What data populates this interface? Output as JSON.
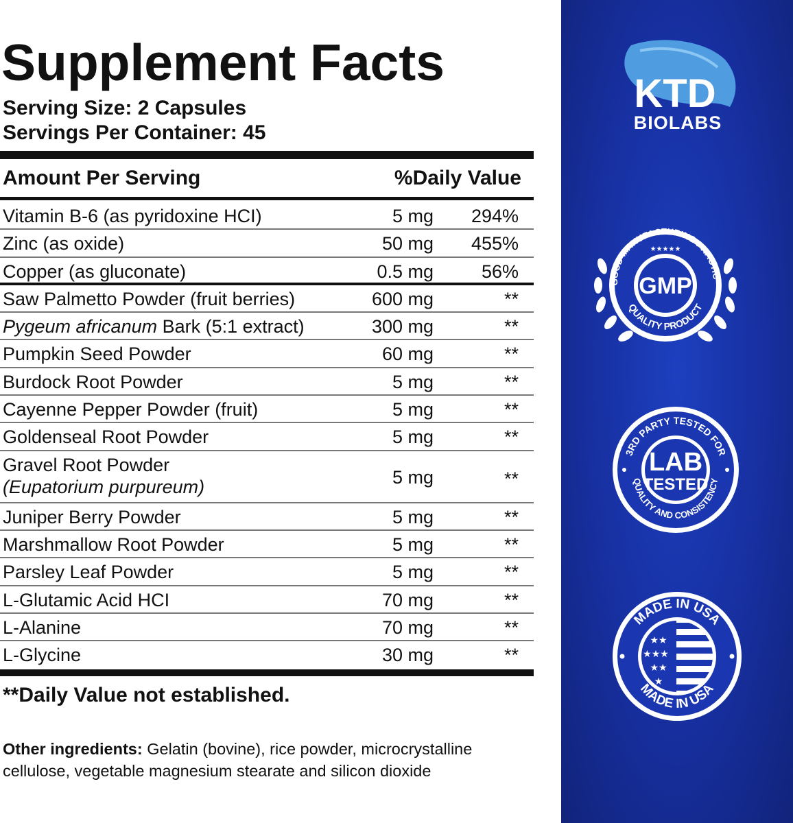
{
  "panel": {
    "title": "Supplement Facts",
    "serving_size": "Serving Size: 2 Capsules",
    "servings_per_container": "Servings Per Container: 45",
    "header_left": "Amount Per Serving",
    "header_right": "%Daily Value",
    "rows": [
      {
        "name": "Vitamin B-6 (as pyridoxine HCI)",
        "amount": "5 mg",
        "dv": "294%"
      },
      {
        "name": "Zinc (as oxide)",
        "amount": "50 mg",
        "dv": "455%"
      },
      {
        "name": "Copper  (as gluconate)",
        "amount": "0.5 mg",
        "dv": "56%"
      },
      {
        "name": "Saw Palmetto Powder (fruit berries)",
        "amount": "600 mg",
        "dv": "**"
      },
      {
        "name_italic": "Pygeum africanum",
        "name_rest": " Bark (5:1 extract)",
        "amount": "300 mg",
        "dv": "**"
      },
      {
        "name": "Pumpkin Seed Powder",
        "amount": "60 mg",
        "dv": "**"
      },
      {
        "name": "Burdock Root Powder",
        "amount": "5 mg",
        "dv": "**"
      },
      {
        "name": "Cayenne Pepper Powder (fruit)",
        "amount": "5 mg",
        "dv": "**"
      },
      {
        "name": "Goldenseal Root Powder",
        "amount": "5 mg",
        "dv": "**"
      },
      {
        "name": "Gravel Root Powder",
        "name_line2": "(Eupatorium purpureum)",
        "amount": "5 mg",
        "dv": "**"
      },
      {
        "name": "Juniper Berry  Powder",
        "amount": "5 mg",
        "dv": "**"
      },
      {
        "name": "Marshmallow Root Powder",
        "amount": "5 mg",
        "dv": "**"
      },
      {
        "name": "Parsley  Leaf Powder",
        "amount": "5 mg",
        "dv": "**"
      },
      {
        "name": "L-Glutamic Acid HCI",
        "amount": "70 mg",
        "dv": "**"
      },
      {
        "name": "L-Alanine",
        "amount": "70 mg",
        "dv": "**"
      },
      {
        "name": "L-Glycine",
        "amount": "30 mg",
        "dv": "**"
      }
    ],
    "footnote": "**Daily Value not established.",
    "other_label": "Other ingredients:",
    "other_text": " Gelatin (bovine), rice powder, microcrystalline cellulose, vegetable magnesium stearate and silicon dioxide"
  },
  "brand": {
    "logo_main": "KTD",
    "logo_sub": "BIOLABS",
    "gmp_center": "GMP",
    "gmp_top_arc": "GOOD MANUFACTURING PRACTICE",
    "gmp_bottom_arc": "QUALITY PRODUCT",
    "lab_center_1": "LAB",
    "lab_center_2": "TESTED",
    "lab_top_arc": "3RD PARTY TESTED FOR",
    "lab_bottom_arc": "QUALITY AND CONSISTENCY",
    "usa_top_arc": "MADE IN USA",
    "usa_bottom_arc": "MADE IN USA",
    "colors": {
      "panel_blue": "#172f9f",
      "leaf_light": "#5aa8e8"
    }
  }
}
